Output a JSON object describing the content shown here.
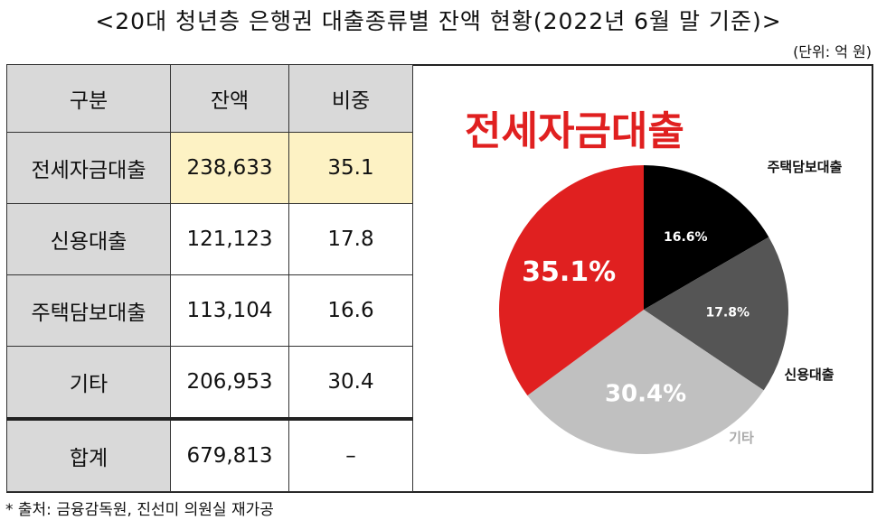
{
  "title": "<20대 청년층 은행권 대출종류별 잔액 현황(2022년 6월 말 기준)>",
  "unit": "(단위: 억 원)",
  "table": {
    "headers": [
      "구분",
      "잔액",
      "비중"
    ],
    "rows": [
      [
        "전세자금대출",
        "238,633",
        "35.1"
      ],
      [
        "신용대출",
        "121,123",
        "17.8"
      ],
      [
        "주택담보대출",
        "113,104",
        "16.6"
      ],
      [
        "기타",
        "206,953",
        "30.4"
      ],
      [
        "합계",
        "679,813",
        "–"
      ]
    ]
  },
  "source": "* 출처: 금융감독원, 진선미 의원실 재가공",
  "chart_data": {
    "type": "pie",
    "title": "전세자금대출",
    "slices": [
      {
        "label": "주택담보대출",
        "value": 16.6,
        "text": "16.6%",
        "color": "#000000"
      },
      {
        "label": "신용대출",
        "value": 17.8,
        "text": "17.8%",
        "color": "#555555"
      },
      {
        "label": "기타",
        "value": 30.4,
        "text": "30.4%",
        "color": "#c0c0c0"
      },
      {
        "label": "전세자금대출",
        "value": 35.1,
        "text": "35.1%",
        "color": "#e02020"
      }
    ]
  }
}
